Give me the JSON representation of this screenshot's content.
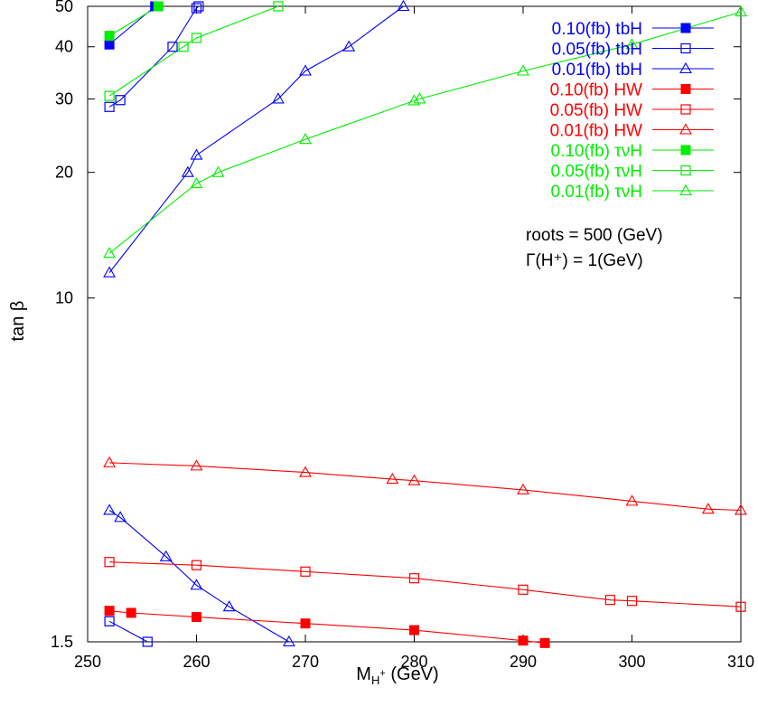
{
  "chart_data": {
    "type": "line",
    "title": "",
    "xlabel": "M_H+ (GeV)",
    "xlabel_main": "M",
    "xlabel_sub": "H",
    "xlabel_sup": "+",
    "xlabel_unit": "(GeV)",
    "ylabel": "tan β",
    "xlim": [
      250,
      310
    ],
    "ylim": [
      1.5,
      50
    ],
    "yscale": "log",
    "x_ticks": [
      "250",
      "260",
      "270",
      "280",
      "290",
      "300",
      "310"
    ],
    "y_ticks": [
      "1.5",
      "10",
      "20",
      "30",
      "40",
      "50"
    ],
    "legend_position": "top-right",
    "grid": false,
    "annotations": [
      "roots = 500 (GeV)",
      "Γ(H⁺) = 1(GeV)"
    ],
    "series": [
      {
        "name": "0.10(fb) tbH",
        "color": "#0000ff",
        "marker": "filled-square",
        "points": [
          [
            252,
            40.5
          ],
          [
            256.2,
            50
          ]
        ]
      },
      {
        "name": "0.05(fb) tbH",
        "color": "#0000ff",
        "marker": "open-square",
        "points": [
          [
            252,
            28.7
          ],
          [
            253,
            29.8
          ],
          [
            257.8,
            40
          ],
          [
            260,
            49.5
          ],
          [
            260.2,
            50
          ]
        ]
      },
      {
        "name": "0.05(fb) tbH",
        "color": "#0000ff",
        "marker": "open-square",
        "points": [
          [
            252,
            1.68
          ],
          [
            255.5,
            1.5
          ]
        ]
      },
      {
        "name": "0.01(fb) tbH",
        "color": "#0000ff",
        "marker": "open-triangle",
        "points": [
          [
            252,
            11.5
          ],
          [
            259.2,
            20
          ],
          [
            260,
            22
          ],
          [
            267.5,
            30
          ],
          [
            270,
            35
          ],
          [
            274,
            40
          ],
          [
            279,
            50
          ]
        ]
      },
      {
        "name": "0.01(fb) tbH",
        "color": "#0000ff",
        "marker": "open-triangle",
        "points": [
          [
            252,
            3.1
          ],
          [
            253,
            2.98
          ],
          [
            257.2,
            2.4
          ],
          [
            260,
            2.05
          ],
          [
            263,
            1.82
          ],
          [
            268.5,
            1.5
          ]
        ]
      },
      {
        "name": "0.10(fb) HW",
        "color": "#ff0000",
        "marker": "filled-square",
        "points": [
          [
            252,
            1.78
          ],
          [
            254,
            1.76
          ],
          [
            260,
            1.72
          ],
          [
            270,
            1.66
          ],
          [
            280,
            1.6
          ],
          [
            290,
            1.51
          ],
          [
            292,
            1.49
          ]
        ]
      },
      {
        "name": "0.05(fb) HW",
        "color": "#ff0000",
        "marker": "open-square",
        "points": [
          [
            252,
            2.33
          ],
          [
            260,
            2.29
          ],
          [
            270,
            2.21
          ],
          [
            280,
            2.13
          ],
          [
            290,
            2.0
          ],
          [
            298,
            1.89
          ],
          [
            300,
            1.88
          ],
          [
            310,
            1.82
          ]
        ]
      },
      {
        "name": "0.01(fb) HW",
        "color": "#ff0000",
        "marker": "open-triangle",
        "points": [
          [
            252,
            4.03
          ],
          [
            260,
            3.96
          ],
          [
            270,
            3.82
          ],
          [
            278,
            3.68
          ],
          [
            280,
            3.65
          ],
          [
            290,
            3.47
          ],
          [
            300,
            3.26
          ],
          [
            307,
            3.12
          ],
          [
            310,
            3.1
          ]
        ]
      },
      {
        "name": "0.10(fb) τνH",
        "color": "#00ee00",
        "marker": "filled-square",
        "points": [
          [
            252,
            42.5
          ],
          [
            256.5,
            50
          ]
        ]
      },
      {
        "name": "0.05(fb) τνH",
        "color": "#00ee00",
        "marker": "open-square",
        "points": [
          [
            252,
            30.5
          ],
          [
            258.8,
            40
          ],
          [
            260,
            42
          ],
          [
            267.5,
            50
          ]
        ]
      },
      {
        "name": "0.01(fb) τνH",
        "color": "#00ee00",
        "marker": "open-triangle",
        "points": [
          [
            252,
            12.8
          ],
          [
            260,
            18.8
          ],
          [
            262,
            20
          ],
          [
            270,
            24
          ],
          [
            280,
            29.7
          ],
          [
            280.5,
            30
          ],
          [
            290,
            35
          ],
          [
            300,
            40.5
          ],
          [
            310,
            48.5
          ]
        ]
      }
    ],
    "legend": [
      {
        "label": "0.10(fb) tbH",
        "color": "#0000ff",
        "marker": "filled-square"
      },
      {
        "label": "0.05(fb) tbH",
        "color": "#0000ff",
        "marker": "open-square"
      },
      {
        "label": "0.01(fb) tbH",
        "color": "#0000ff",
        "marker": "open-triangle"
      },
      {
        "label": "0.10(fb) HW",
        "color": "#ff0000",
        "marker": "filled-square"
      },
      {
        "label": "0.05(fb) HW",
        "color": "#ff0000",
        "marker": "open-square"
      },
      {
        "label": "0.01(fb) HW",
        "color": "#ff0000",
        "marker": "open-triangle"
      },
      {
        "label": "0.10(fb) τνH",
        "color": "#00ee00",
        "marker": "filled-square"
      },
      {
        "label": "0.05(fb) τνH",
        "color": "#00ee00",
        "marker": "open-square"
      },
      {
        "label": "0.01(fb) τνH",
        "color": "#00ee00",
        "marker": "open-triangle"
      }
    ]
  }
}
